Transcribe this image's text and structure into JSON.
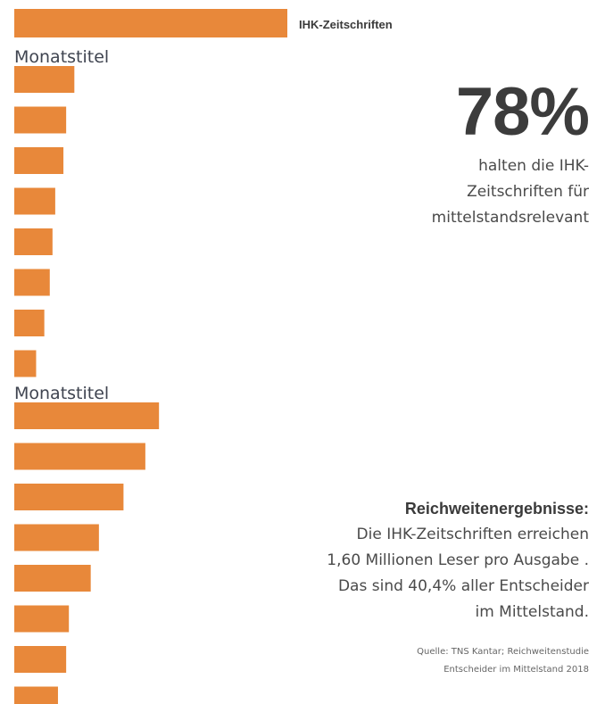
{
  "chart_data": {
    "type": "bar",
    "orientation": "horizontal",
    "colors": {
      "bar": "#E8883A",
      "text": "#3c3c3c"
    },
    "top_bar": {
      "label": "IHK-Zeitschriften",
      "value": 100
    },
    "groups": [
      {
        "label": "Monatstitel",
        "values": [
          22,
          19,
          18,
          15,
          14,
          13,
          11,
          8
        ]
      },
      {
        "label": "Monatstitel",
        "values": [
          53,
          48,
          40,
          31,
          28,
          20,
          19,
          16
        ]
      }
    ]
  },
  "stat": {
    "value": "78%",
    "lines": [
      "halten die IHK-",
      "Zeitschriften für",
      "mittelstandsrelevant"
    ]
  },
  "reach": {
    "title": "Reichweitenergebnisse:",
    "lines": [
      "Die IHK-Zeitschriften erreichen",
      "1,60 Millionen Leser pro Ausgabe .",
      "Das sind 40,4% aller Entscheider",
      "im Mittelstand."
    ]
  },
  "source": {
    "lines": [
      "Quelle:  TNS Kantar; Reichweitenstudie",
      "Entscheider im Mittelstand 2018"
    ]
  }
}
